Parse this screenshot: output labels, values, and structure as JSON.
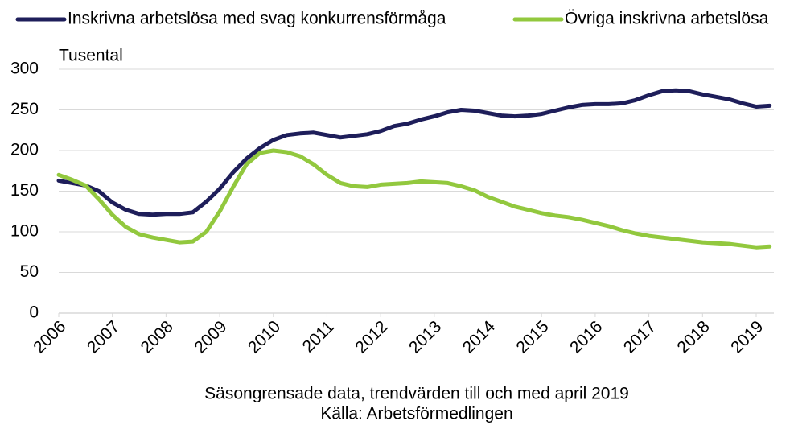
{
  "chart_data": {
    "type": "line",
    "y_label": "Tusental",
    "notes": [
      "Säsongrensade data, trendvärden till och med april 2019",
      "Källa: Arbetsförmedlingen"
    ],
    "x": [
      2006,
      2006.25,
      2006.5,
      2006.75,
      2007,
      2007.25,
      2007.5,
      2007.75,
      2008,
      2008.25,
      2008.5,
      2008.75,
      2009,
      2009.25,
      2009.5,
      2009.75,
      2010,
      2010.25,
      2010.5,
      2010.75,
      2011,
      2011.25,
      2011.5,
      2011.75,
      2012,
      2012.25,
      2012.5,
      2012.75,
      2013,
      2013.25,
      2013.5,
      2013.75,
      2014,
      2014.25,
      2014.5,
      2014.75,
      2015,
      2015.25,
      2015.5,
      2015.75,
      2016,
      2016.25,
      2016.5,
      2016.75,
      2017,
      2017.25,
      2017.5,
      2017.75,
      2018,
      2018.25,
      2018.5,
      2018.75,
      2019,
      2019.25
    ],
    "series": [
      {
        "name": "Inskrivna arbetslösa med svag konkurrensförmåga",
        "color": "#1e1e5a",
        "values": [
          163,
          160,
          157,
          150,
          136,
          127,
          122,
          121,
          122,
          122,
          124,
          137,
          153,
          173,
          190,
          203,
          213,
          219,
          221,
          222,
          219,
          216,
          218,
          220,
          224,
          230,
          233,
          238,
          242,
          247,
          250,
          249,
          246,
          243,
          242,
          243,
          245,
          249,
          253,
          256,
          257,
          257,
          258,
          262,
          268,
          273,
          274,
          273,
          269,
          266,
          263,
          258,
          254,
          255
        ]
      },
      {
        "name": "Övriga inskrivna arbetslösa",
        "color": "#92c83e",
        "values": [
          170,
          164,
          157,
          140,
          121,
          106,
          97,
          93,
          90,
          87,
          88,
          100,
          125,
          155,
          183,
          197,
          200,
          198,
          193,
          183,
          170,
          160,
          156,
          155,
          158,
          159,
          160,
          162,
          161,
          160,
          156,
          151,
          143,
          137,
          131,
          127,
          123,
          120,
          118,
          115,
          111,
          107,
          102,
          98,
          95,
          93,
          91,
          89,
          87,
          86,
          85,
          83,
          81,
          82
        ]
      }
    ],
    "xlim": [
      2006,
      2019.33
    ],
    "xticks": [
      2006,
      2007,
      2008,
      2009,
      2010,
      2011,
      2012,
      2013,
      2014,
      2015,
      2016,
      2017,
      2018,
      2019
    ],
    "ylim": [
      0,
      300
    ],
    "yticks": [
      0,
      50,
      100,
      150,
      200,
      250,
      300
    ],
    "grid": true,
    "legend": "top"
  }
}
